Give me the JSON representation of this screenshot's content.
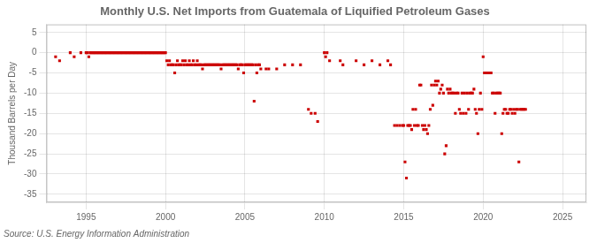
{
  "chart_data": {
    "type": "scatter",
    "title": "Monthly U.S. Net Imports from Guatemala of Liquified Petroleum Gases",
    "ylabel": "Thousand Barrels per Day",
    "annotation": "Source: U.S. Energy Information Administration",
    "color": "#CC0000",
    "marker": "square",
    "grid": true,
    "xlim": [
      1992.5,
      2026.5
    ],
    "ylim": [
      -37,
      7
    ],
    "xticks": [
      1995,
      2000,
      2005,
      2010,
      2015,
      2020,
      2025
    ],
    "yticks": [
      5,
      0,
      -5,
      -10,
      -15,
      -20,
      -25,
      -30,
      -35
    ],
    "x": [
      1993.08,
      1993.33,
      1994.0,
      1994.25,
      1994.67,
      1995.0,
      1995.08,
      1995.17,
      1995.25,
      1995.33,
      1995.42,
      1995.5,
      1995.58,
      1995.67,
      1995.75,
      1995.83,
      1995.92,
      1996.0,
      1996.08,
      1996.17,
      1996.25,
      1996.33,
      1996.42,
      1996.5,
      1996.58,
      1996.67,
      1996.75,
      1996.83,
      1996.92,
      1997.0,
      1997.08,
      1997.17,
      1997.25,
      1997.33,
      1997.42,
      1997.5,
      1997.58,
      1997.67,
      1997.75,
      1997.83,
      1997.92,
      1998.0,
      1998.08,
      1998.17,
      1998.25,
      1998.33,
      1998.42,
      1998.5,
      1998.58,
      1998.67,
      1998.75,
      1998.83,
      1998.92,
      1999.0,
      1999.08,
      1999.17,
      1999.25,
      1999.33,
      1999.42,
      1999.5,
      1999.58,
      1999.67,
      1999.75,
      1999.83,
      1999.92,
      2000.0,
      2000.08,
      2000.17,
      2000.25,
      2000.33,
      2000.42,
      2000.5,
      2000.58,
      2000.67,
      2000.75,
      2000.83,
      2000.92,
      2001.0,
      2001.08,
      2001.17,
      2001.25,
      2001.33,
      2001.42,
      2001.5,
      2001.58,
      2001.67,
      2001.75,
      2001.83,
      2001.92,
      2002.0,
      2002.08,
      2002.17,
      2002.25,
      2002.33,
      2002.42,
      2002.5,
      2002.58,
      2002.67,
      2002.75,
      2002.83,
      2002.92,
      2003.0,
      2003.08,
      2003.17,
      2003.25,
      2003.33,
      2003.42,
      2003.5,
      2003.58,
      2003.67,
      2003.75,
      2003.83,
      2003.92,
      2004.0,
      2004.08,
      2004.17,
      2004.25,
      2004.33,
      2004.42,
      2004.5,
      2004.58,
      2004.67,
      2004.75,
      2004.83,
      2004.92,
      2005.0,
      2005.08,
      2005.17,
      2005.25,
      2005.33,
      2005.42,
      2005.5,
      2005.58,
      2005.67,
      2005.75,
      2005.83,
      2005.92,
      2006.0,
      2006.33,
      2006.5,
      2007.0,
      2007.5,
      2008.0,
      2008.5,
      2009.0,
      2009.17,
      2009.42,
      2009.58,
      2010.0,
      2010.08,
      2010.17,
      2010.33,
      2011.0,
      2011.17,
      2012.0,
      2012.5,
      2013.0,
      2013.5,
      2014.0,
      2014.17,
      2014.42,
      2014.58,
      2014.75,
      2014.92,
      2015.0,
      2015.08,
      2015.17,
      2015.25,
      2015.33,
      2015.42,
      2015.5,
      2015.58,
      2015.67,
      2015.75,
      2015.83,
      2015.92,
      2016.0,
      2016.08,
      2016.17,
      2016.25,
      2016.33,
      2016.42,
      2016.5,
      2016.58,
      2016.67,
      2016.75,
      2016.83,
      2016.92,
      2017.0,
      2017.08,
      2017.17,
      2017.25,
      2017.33,
      2017.42,
      2017.5,
      2017.58,
      2017.67,
      2017.75,
      2017.83,
      2017.92,
      2018.0,
      2018.08,
      2018.17,
      2018.25,
      2018.33,
      2018.42,
      2018.5,
      2018.58,
      2018.67,
      2018.75,
      2018.83,
      2018.92,
      2019.0,
      2019.08,
      2019.17,
      2019.25,
      2019.33,
      2019.42,
      2019.5,
      2019.58,
      2019.67,
      2019.75,
      2019.83,
      2019.92,
      2020.0,
      2020.08,
      2020.17,
      2020.25,
      2020.33,
      2020.42,
      2020.5,
      2020.58,
      2020.67,
      2020.75,
      2020.83,
      2020.92,
      2021.0,
      2021.08,
      2021.17,
      2021.25,
      2021.33,
      2021.42,
      2021.5,
      2021.58,
      2021.67,
      2021.75,
      2021.83,
      2021.92,
      2022.0,
      2022.08,
      2022.17,
      2022.25,
      2022.33,
      2022.42,
      2022.5,
      2022.58,
      2022.67
    ],
    "values": [
      -1,
      -2,
      0,
      -1,
      0,
      0,
      0,
      -1,
      0,
      0,
      0,
      0,
      0,
      0,
      0,
      0,
      0,
      0,
      0,
      0,
      0,
      0,
      0,
      0,
      0,
      0,
      0,
      0,
      0,
      0,
      0,
      0,
      0,
      0,
      0,
      0,
      0,
      0,
      0,
      0,
      0,
      0,
      0,
      0,
      0,
      0,
      0,
      0,
      0,
      0,
      0,
      0,
      0,
      0,
      0,
      0,
      0,
      0,
      0,
      0,
      0,
      0,
      0,
      0,
      0,
      0,
      -2,
      -3,
      -2,
      -3,
      -3,
      -3,
      -5,
      -3,
      -2,
      -3,
      -3,
      -3,
      -2,
      -3,
      -2,
      -3,
      -3,
      -2,
      -3,
      -3,
      -2,
      -3,
      -3,
      -2,
      -3,
      -3,
      -3,
      -4,
      -3,
      -3,
      -3,
      -3,
      -3,
      -3,
      -3,
      -3,
      -3,
      -3,
      -3,
      -3,
      -3,
      -4,
      -3,
      -3,
      -3,
      -3,
      -3,
      -3,
      -3,
      -3,
      -3,
      -3,
      -3,
      -3,
      -4,
      -3,
      -3,
      -3,
      -5,
      -3,
      -3,
      -3,
      -3,
      -3,
      -3,
      -3,
      -12,
      -3,
      -5,
      -3,
      -3,
      -4,
      -4,
      -4,
      -4,
      -3,
      -3,
      -3,
      -14,
      -15,
      -15,
      -17,
      0,
      -1,
      0,
      -2,
      -2,
      -3,
      -2,
      -3,
      -2,
      -3,
      -2,
      -3,
      -18,
      -18,
      -18,
      -18,
      -18,
      -27,
      -31,
      -18,
      -18,
      -18,
      -19,
      -14,
      -18,
      -14,
      -18,
      -18,
      -8,
      -8,
      -18,
      -19,
      -18,
      -19,
      -20,
      -18,
      -14,
      -8,
      -13,
      -8,
      -7,
      -8,
      -7,
      -10,
      -9,
      -8,
      -10,
      -25,
      -23,
      -9,
      -10,
      -9,
      -10,
      -10,
      -10,
      -15,
      -10,
      -10,
      -14,
      -15,
      -10,
      -15,
      -10,
      -15,
      -10,
      -14,
      -10,
      -10,
      -10,
      -9,
      -14,
      -15,
      -20,
      -14,
      -10,
      -14,
      -1,
      -5,
      -5,
      -5,
      -5,
      -5,
      -5,
      -10,
      -10,
      -15,
      -10,
      -10,
      -10,
      -10,
      -20,
      -15,
      -14,
      -14,
      -15,
      -15,
      -14,
      -14,
      -15,
      -14,
      -15,
      -14,
      -14,
      -27,
      -14,
      -14,
      -14,
      -14,
      -14
    ]
  }
}
